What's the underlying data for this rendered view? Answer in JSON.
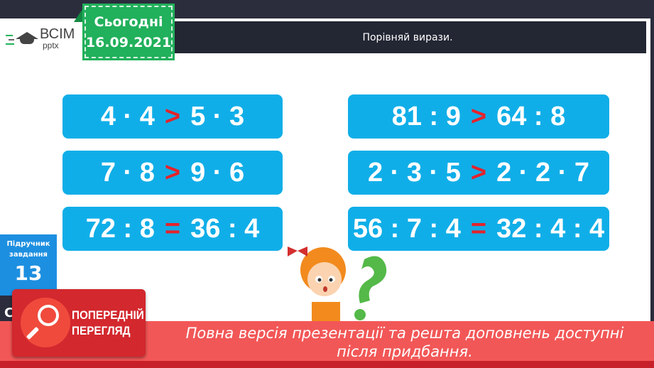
{
  "header": {
    "title": "Порівняй вирази.",
    "date_label": "Сьогодні",
    "date": "16.09.2021",
    "logo_main": "ВСІМ",
    "logo_sub": "pptx"
  },
  "expressions": [
    {
      "left": "4 · 4",
      "sign": ">",
      "right": "5 · 3"
    },
    {
      "left": "81 : 9",
      "sign": ">",
      "right": "64 : 8"
    },
    {
      "left": "7 · 8",
      "sign": ">",
      "right": "9 · 6"
    },
    {
      "left": "2 · 3 · 5",
      "sign": ">",
      "right": "2 · 2 · 7"
    },
    {
      "left": "72 : 8",
      "sign": "=",
      "right": "36 : 4"
    },
    {
      "left": "56 : 7 : 4",
      "sign": "=",
      "right": "32 : 4 : 4"
    }
  ],
  "side": {
    "line1": "Підручник",
    "line2": "завдання",
    "number": "13",
    "extra": "С"
  },
  "preview": {
    "line1": "ПОПЕРЕДНІЙ",
    "line2": "ПЕРЕГЛЯД",
    "icon": "magnifier-icon"
  },
  "banner": {
    "text": "Повна версія презентації та решта доповнень доступні після придбання."
  },
  "colors": {
    "expr_bg": "#10aee8",
    "sign": "#e3232b",
    "date_bg": "#21b05b",
    "banner": "#f25757"
  }
}
